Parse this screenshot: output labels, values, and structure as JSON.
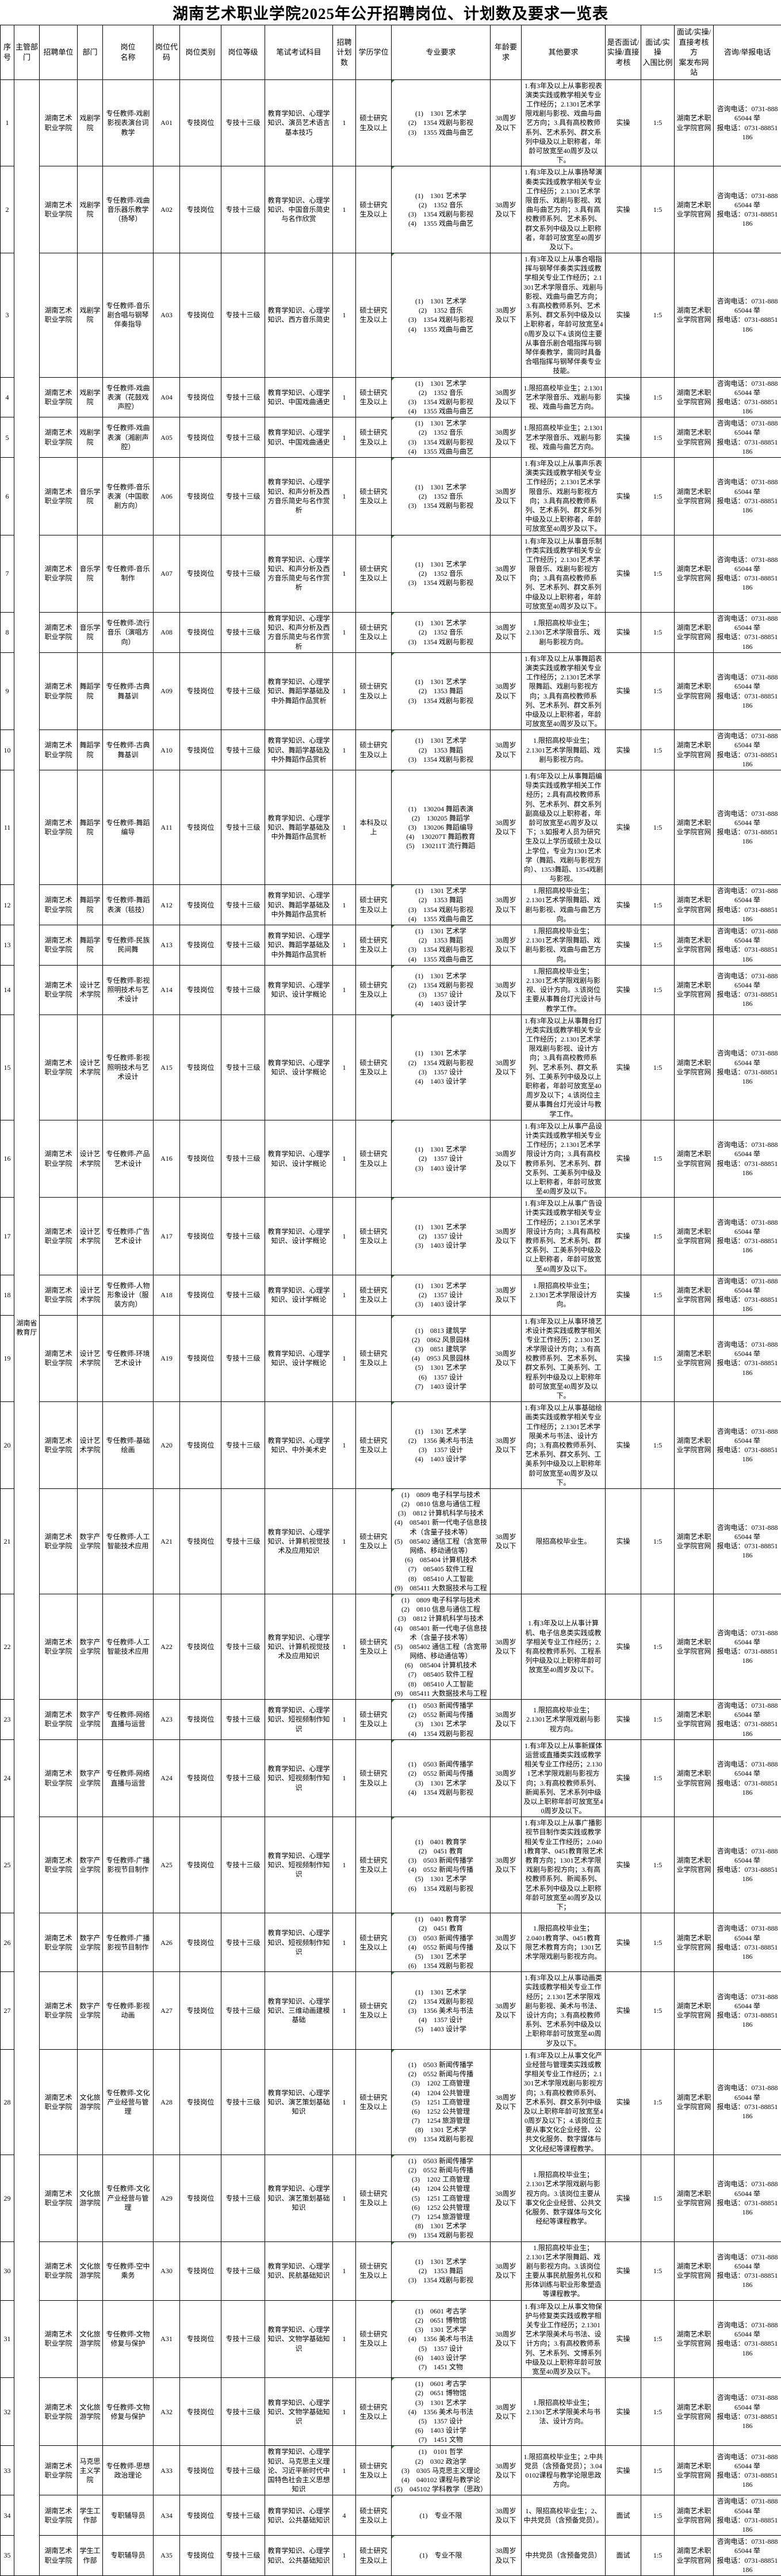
{
  "title": "湖南艺术职业学院2025年公开招聘岗位、计划数及要求一览表",
  "columns": [
    "序号",
    "主管部门",
    "招聘单位",
    "部门",
    "岗位\n名称",
    "岗位代\n码",
    "岗位类别",
    "岗位等级",
    "笔试考试科目",
    "招聘\n计划\n数",
    "学历学位",
    "专业要求",
    "年龄要\n求",
    "其他要求",
    "是否面试/\n实操/直接\n考核",
    "面试/实操\n入围比例",
    "面试/实操/\n直接考核方\n案发布网站",
    "咨询/举报电话"
  ],
  "supervisor": "湖南省教育厅",
  "defaults": {
    "org": "湖南艺术职业学院",
    "category": "专技岗位",
    "grade": "专技十三级",
    "plan": "1",
    "degree": "硕士研究生及以上",
    "age": "38周岁及以下",
    "assess": "实操",
    "ratio": "1:5",
    "site": "湖南艺术职业学院官网",
    "phone": "咨询电话：0731-88865044        举\n报电话：0731-88851186"
  },
  "rows": [
    {
      "no": "1",
      "dept": "戏剧学院",
      "job": "专任教师-戏剧影视表演台词教学",
      "code": "A01",
      "exam": "教育学知识、心理学知识、演员艺术语言基本技巧",
      "majors": [
        "(1)　1301 艺术学",
        "(2)　1354 戏剧与影视",
        "(3)　1355 戏曲与曲艺"
      ],
      "other": "1.有3年及以上从事影视表演类实践或教学相关专业工作经历；2.1301艺术学限戏剧与影视、戏曲与曲艺方向；3.具有高校教师系列、艺术系列、群文系列中级及以上职称者，年龄可放宽至40周岁及以下。"
    },
    {
      "no": "2",
      "dept": "戏剧学院",
      "job": "专任教师-戏曲音乐器乐教学（扬琴）",
      "code": "A02",
      "exam": "教育学知识、心理学知识、中国音乐简史与名作欣赏",
      "majors": [
        "(1)　1301 艺术学",
        "(2)　1352 音乐",
        "(3)　1354 戏剧与影视",
        "(4)　1355 戏曲与曲艺"
      ],
      "other": "1.有3年及以上从事扬琴演奏类实践或教学相关专业工作经历；2.1301艺术学限音乐、戏剧与影视、戏曲与曲艺方向；3.具有高校教师系列、艺术系列、群文系列中级及以上职称者，年龄可放宽至40周岁及以下。"
    },
    {
      "no": "3",
      "dept": "戏剧学院",
      "job": "专任教师-音乐剧合唱与钢琴伴奏指导",
      "code": "A03",
      "exam": "教育学知识、心理学知识、西方音乐简史",
      "majors": [
        "(1)　1301 艺术学",
        "(2)　1352 音乐",
        "(3)　1354 戏剧与影视",
        "(4)　1355 戏曲与曲艺"
      ],
      "other": "1.有3年及以上从事合唱指挥与钢琴伴奏类实践或教学相关专业工作经历；2.1301艺术学限音乐、戏剧与影视、戏曲与曲艺方向；3.有高校教师系列、艺术系列、群文系列中级及以上职称者，年龄可放宽至40周岁及以下4.该岗位主要从事音乐剧合唱指挥与钢琴伴奏教学，需同时具备合唱指挥与钢琴伴奏专业技能。"
    },
    {
      "no": "4",
      "dept": "戏剧学院",
      "job": "专任教师-戏曲表演（花鼓戏声腔）",
      "code": "A04",
      "exam": "教育学知识、心理学知识、中国戏曲通史",
      "majors": [
        "(1)　1301 艺术学",
        "(2)　1352 音乐",
        "(3)　1354 戏剧与影视",
        "(4)　1355 戏曲与曲艺"
      ],
      "other": "1.限招高校毕业生；2.1301艺术学限音乐、戏剧与影视、戏曲与曲艺方向。"
    },
    {
      "no": "5",
      "dept": "戏剧学院",
      "job": "专任教师-戏曲表演（湘剧声腔）",
      "code": "A05",
      "exam": "教育学知识、心理学知识、中国戏曲通史",
      "majors": [
        "(1)　1301 艺术学",
        "(2)　1352 音乐",
        "(3)　1354 戏剧与影视",
        "(4)　1355 戏曲与曲艺"
      ],
      "other": "1.限招高校毕业生；2.1301艺术学限音乐、戏剧与影视、戏曲与曲艺方向。"
    },
    {
      "no": "6",
      "dept": "音乐学院",
      "job": "专任教师-音乐表演（中国歌剧方向）",
      "code": "A06",
      "exam": "教育学知识、心理学知识、和声分析及西方音乐简史与名作赏析",
      "majors": [
        "(1)　1301 艺术学",
        "(2)　1352 音乐",
        "(3)　1354 戏剧与影视"
      ],
      "other": "1.有3年及以上从事声乐表演类实践或教学相关专业工作经历；2.1301艺术学限音乐、戏剧与影视方向；3.具有高校教师系列、艺术系列、群文系列中级及以上职称者，年龄可放宽至40周岁及以下。"
    },
    {
      "no": "7",
      "dept": "音乐学院",
      "job": "专任教师-音乐制作",
      "code": "A07",
      "exam": "教育学知识、心理学知识、和声分析及西方音乐简史与名作赏析",
      "majors": [
        "(1)　1301 艺术学",
        "(2)　1352 音乐",
        "(3)　1354 戏剧与影视"
      ],
      "other": "1.有3年及以上从事音乐制作类实践或教学相关专业工作经历；2.1301艺术学限音乐、戏剧与影视方向；3.具有高校教师系列、艺术系列、群文系列中级及以上职称者，年龄可放宽至40周岁及以下。"
    },
    {
      "no": "8",
      "dept": "音乐学院",
      "job": "专任教师-流行音乐（演唱方向）",
      "code": "A08",
      "exam": "教育学知识、心理学知识、和声分析及西方音乐简史与名作赏析",
      "majors": [
        "(1)　1301 艺术学",
        "(2)　1352 音乐",
        "(3)　1354 戏剧与影视"
      ],
      "other": "1.限招高校毕业生；\n2.1301艺术学限音乐、戏剧与影视方向。"
    },
    {
      "no": "9",
      "dept": "舞蹈学院",
      "job": "专任教师-古典舞基训",
      "code": "A09",
      "exam": "教育学知识、心理学知识、舞蹈学基础及中外舞蹈作品赏析",
      "majors": [
        "(1)　1301 艺术学",
        "(2)　1353 舞蹈",
        "(3)　1354 戏剧与影视"
      ],
      "other": "1.有3年及以上从事舞蹈表演类实践或教学相关专业工作经历；2.1301艺术学限舞蹈、戏剧与影视方向；3.具有高校教师系列、艺术系列、群文系列中级及以上职称者，年龄可放宽至40周岁及以下。"
    },
    {
      "no": "10",
      "dept": "舞蹈学院",
      "job": "专任教师-古典舞基训",
      "code": "A10",
      "exam": "教育学知识、心理学知识、舞蹈学基础及中外舞蹈作品赏析",
      "majors": [
        "(1)　1301 艺术学",
        "(2)　1353 舞蹈",
        "(3)　1354 戏剧与影视"
      ],
      "other": "1.限招高校毕业生；\n2.1301艺术学限舞蹈、戏剧与影视方向。"
    },
    {
      "no": "11",
      "dept": "舞蹈学院",
      "job": "专任教师-舞蹈编导",
      "code": "A11",
      "exam": "教育学知识、心理学知识、舞蹈学基础及中外舞蹈作品赏析",
      "degree": "本科及以上",
      "majors": [
        "(1)　130204 舞蹈表演",
        "(2)　130205 舞蹈学",
        "(3)　130206 舞蹈编导",
        "(4)　130207T 舞蹈教育",
        "(5)　130211T 流行舞蹈"
      ],
      "other": "1.有5年及以上从事舞蹈编导类实践或教学相关工作经历；2.具有高校教师系列、艺术系列、群文系列副高级及以上职称者，年龄可放宽至45周岁及以下；3.如报考人员为研究生及以上学历或硕士及以上学位，专业为1301艺术学（舞蹈、戏剧与影视方向）、1353舞蹈、1354戏剧与影视。"
    },
    {
      "no": "12",
      "dept": "舞蹈学院",
      "job": "专任教师-舞蹈表演（毯技）",
      "code": "A12",
      "exam": "教育学知识、心理学知识、舞蹈学基础及中外舞蹈作品赏析",
      "majors": [
        "(1)　1301 艺术学",
        "(2)　1353 舞蹈",
        "(3)　1354 戏剧与影视",
        "(4)　1355 戏曲与曲艺"
      ],
      "other": "1.限招高校毕业生；\n2.1301艺术学限舞蹈、戏剧与影视、戏曲与曲艺方向。"
    },
    {
      "no": "13",
      "dept": "舞蹈学院",
      "job": "专任教师-民族民间舞",
      "code": "A13",
      "exam": "教育学知识、心理学知识、舞蹈学基础及中外舞蹈作品赏析",
      "majors": [
        "(1)　1301 艺术学",
        "(2)　1353 舞蹈",
        "(3)　1354 戏剧与影视",
        "(4)　1355 戏曲与曲艺"
      ],
      "other": "1.限招高校毕业生；\n2.1301艺术学限舞蹈、戏剧与影视、戏曲与曲艺方向。"
    },
    {
      "no": "14",
      "dept": "设计艺术学院",
      "job": "专任教师-影视照明技术与艺术设计",
      "code": "A14",
      "exam": "教育学知识、心理学知识、设计学概论",
      "majors": [
        "(1)　1301 艺术学",
        "(2)　1354 戏剧与影视",
        "(3)　1357 设计",
        "(4)　1403 设计学"
      ],
      "other": "1.限招高校毕业生；\n2.1301艺术学限戏剧与影视、设计方向。3.该岗位主要从事舞台灯光设计与教学工作。"
    },
    {
      "no": "15",
      "dept": "设计艺术学院",
      "job": "专任教师-影视照明技术与艺术设计",
      "code": "A15",
      "exam": "教育学知识、心理学知识、设计学概论",
      "majors": [
        "(1)　1301 艺术学",
        "(2)　1354 戏剧与影视",
        "(3)　1357 设计",
        "(4)　1403 设计学"
      ],
      "other": "1.有3年及以上从事舞台灯光类实践或教学相关专业工作经历；2.1301艺术学限戏剧与影视、设计方向；3.具有高校教师系列、艺术系列、群文系列、工美系列中级及以上职称者，年龄可放宽至40周岁及以下；4.该岗位主要从事舞台灯光设计与教学工作。"
    },
    {
      "no": "16",
      "dept": "设计艺术学院",
      "job": "专任教师-产品艺术设计",
      "code": "A16",
      "exam": "教育学知识、心理学知识、设计学概论",
      "majors": [
        "(1)　1301 艺术学",
        "(2)　1357 设计",
        "(3)　1403 设计学"
      ],
      "other": "1.有3年及以上从事产品设计类实践或教学相关专业工作经历；2.1301艺术学限设计方向；3.具有高校教师系列、艺术系列、群文系列、工美系列中级及以上职称者，年龄可放宽至40周岁及以下。"
    },
    {
      "no": "17",
      "dept": "设计艺术学院",
      "job": "专任教师-广告艺术设计",
      "code": "A17",
      "exam": "教育学知识、心理学知识、设计学概论",
      "majors": [
        "(1)　1301 艺术学",
        "(2)　1357 设计",
        "(3)　1403 设计学"
      ],
      "other": "1.有3年及以上从事广告设计类实践或教学相关专业工作经历；2.1301艺术学限设计方向；3.具有高校教师系列、艺术系列、群文系列、工美系列中级及以上职称者，年龄可放宽至40周岁及以下。"
    },
    {
      "no": "18",
      "dept": "设计艺术学院",
      "job": "专任教师-人物形象设计（服装方向）",
      "code": "A18",
      "exam": "教育学知识、心理学知识、设计学概论",
      "majors": [
        "(1)　1301 艺术学",
        "(2)　1357 设计",
        "(3)　1403 设计学"
      ],
      "other": "1.限招高校毕业生；\n2.1301艺术学限设计方向。"
    },
    {
      "no": "19",
      "dept": "设计艺术学院",
      "job": "专任教师-环境艺术设计",
      "code": "A19",
      "exam": "教育学知识、心理学知识、设计学概论",
      "majors": [
        "(1)　0813 建筑学",
        "(2)　0862 风景园林",
        "(3)　0851 建筑学",
        "(4)　0953 风景园林",
        "(5)　1301 艺术学",
        "(6)　1357 设计",
        "(7)　1403 设计学"
      ],
      "other": "1.有3年及以上从事环境艺术设计类实践或教学相关专业工作经历；2.1301艺术学限设计方向；3.有高校教师系列、艺术系列、群文系列、工美系列、工程系列中级及以上职称年龄可放宽至40周岁及以下。"
    },
    {
      "no": "20",
      "dept": "设计艺术学院",
      "job": "专任教师-基础绘画",
      "code": "A20",
      "exam": "教育学知识、心理学知识、中外美术史",
      "majors": [
        "(1)　1301 艺术学",
        "(2)　1356 美术与书法",
        "(3)　1357 设计",
        "(4)　1403 设计学"
      ],
      "other": "1.有3年及以上从事基础绘画类实践或教学相关专业工作经历；2.1301艺术学限美术与书法、设计方向；3.有高校教师系列、艺术系列、群文系列、工美系列中级及以上职称年龄可放宽至40周岁及以下。"
    },
    {
      "no": "21",
      "dept": "数字产业学院",
      "job": "专任教师-人工智能技术应用",
      "code": "A21",
      "exam": "教育学知识、心理学知识、计算机视觉技术及应用知识",
      "majors": [
        "(1)　0809 电子科学与技术",
        "(2)　0810 信息与通信工程",
        "(3)　0812 计算机科学与技术",
        "(4)　085401 新一代电子信息技术（含量子技术等）",
        "(5)　085402 通信工程（含宽带网络、移动通信等）",
        "(6)　085404 计算机技术",
        "(7)　085405 软件工程",
        "(8)　085410 人工智能",
        "(9)　085411 大数据技术与工程"
      ],
      "other": "限招高校毕业生。"
    },
    {
      "no": "22",
      "dept": "数字产业学院",
      "job": "专任教师-人工智能技术应用",
      "code": "A22",
      "exam": "教育学知识、心理学知识、计算机视觉技术及应用知识",
      "majors": [
        "(1)　0809 电子科学与技术",
        "(2)　0810 信息与通信工程",
        "(3)　0812 计算机科学与技术",
        "(4)　085401 新一代电子信息技术（含量子技术等）",
        "(5)　085402 通信工程（含宽带网络、移动通信等）",
        "(6)　085404 计算机技术",
        "(7)　085405 软件工程",
        "(8)　085410 人工智能",
        "(9)　085411 大数据技术与工程"
      ],
      "other": "1.有3年及以上从事计算机、电子信息类实践或教学相关专业工作经历；2.有高校教师系列、工程系列中级及以上职称年龄可放宽至40周岁及以下。"
    },
    {
      "no": "23",
      "dept": "数字产业学院",
      "job": "专任教师-网络直播与运营",
      "code": "A23",
      "exam": "教育学知识、心理学知识、短视频制作知识",
      "majors": [
        "(1)　0503 新闻传播学",
        "(2)　0552 新闻与传播",
        "(3)　1301 艺术学",
        "(4)　1354 戏剧与影视"
      ],
      "other": "1.限招高校毕业生；\n2.1301艺术学限戏剧与影视方向。"
    },
    {
      "no": "24",
      "dept": "数字产业学院",
      "job": "专任教师-网络直播与运营",
      "code": "A24",
      "exam": "教育学知识、心理学知识、短视频制作知识",
      "majors": [
        "(1)　0503 新闻传播学",
        "(2)　0552 新闻与传播",
        "(3)　1301 艺术学",
        "(4)　1354 戏剧与影视"
      ],
      "other": "1.有3年及以上从事新媒体运营或直播类实践或教学相关专业工作经历；2.1301艺术学限戏剧与影视方向；3.有高校教师系列、新闻系列、艺术系列中级及以上职称年龄可放宽至40周岁及以下。"
    },
    {
      "no": "25",
      "dept": "数字产业学院",
      "job": "专任教师-广播影视节目制作",
      "code": "A25",
      "exam": "教育学知识、心理学知识、短视频制作知识",
      "majors": [
        "(1)　0401 教育学",
        "(2)　0451 教育",
        "(3)　0503 新闻传播学",
        "(4)　0552 新闻与传播",
        "(5)　1301 艺术学",
        "(6)　1354 戏剧与影视"
      ],
      "other": "1.有3年及以上从事广播影视节目制作类实践或教学相关专业工作经历；2.0401教育学、0451教育限艺术教育方向；1301艺术学限戏剧与影视方向；3.有高校教师系列、新闻系列、艺术系列中级及以上职称年龄可放宽至40周岁及以下；"
    },
    {
      "no": "26",
      "dept": "数字产业学院",
      "job": "专任教师-广播影视节目制作",
      "code": "A26",
      "exam": "教育学知识、心理学知识、短视频制作知识",
      "majors": [
        "(1)　0401 教育学",
        "(2)　0451 教育",
        "(3)　0503 新闻传播学",
        "(4)　0552 新闻与传播",
        "(5)　1301 艺术学",
        "(6)　1354 戏剧与影视"
      ],
      "other": "1.限招高校毕业生；\n2.0401教育学、0451教育限艺术教育方向；1301艺术学限戏剧与影视方向。"
    },
    {
      "no": "27",
      "dept": "数字产业学院",
      "job": "专任教师-影视动画",
      "code": "A27",
      "exam": "教育学知识、心理学知识、三维动画建模基础",
      "majors": [
        "(1)　1301 艺术学",
        "(2)　1354 戏剧与影视",
        "(3)　1356 美术与书法",
        "(4)　1357 设计",
        "(5)　1403 设计学"
      ],
      "other": "1.有3年及以上从事动画类实践或教学相关专业工作经历；2.1301艺术学限戏剧与影视、美术与书法、设计方向；3.有高校教师系列、艺术系列中级及以上职称年龄可放宽至40周岁及以下。"
    },
    {
      "no": "28",
      "dept": "文化旅游学院",
      "job": "专任教师-文化产业经营与管理",
      "code": "A28",
      "exam": "教育学知识、心理学知识、演艺策划基础知识",
      "majors": [
        "(1)　0503 新闻传播学",
        "(2)　0552 新闻与传播",
        "(3)　1202 工商管理",
        "(4)　1204 公共管理",
        "(5)　1251 工商管理",
        "(6)　1252 公共管理",
        "(7)　1254 旅游管理",
        "(8)　1301 艺术学",
        "(9)　1354 戏剧与影视"
      ],
      "other": "1.有3年及以上从事文化产业经营与管理类实践或教学相关专业工作经历；2.1301艺术学限戏剧与影视方向；3.有高校教师系列、艺术系列、群文系列中级及以上职称年龄可放宽至40周岁及以下；4.该岗位主要从事文化企业经营、公共文化服务、数字媒体与文化经纪等课程教学。"
    },
    {
      "no": "29",
      "dept": "文化旅游学院",
      "job": "专任教师-文化产业经营与管理",
      "code": "A29",
      "exam": "教育学知识、心理学知识、演艺策划基础知识",
      "majors": [
        "(1)　0503 新闻传播学",
        "(2)　0552 新闻与传播",
        "(3)　1202 工商管理",
        "(4)　1204 公共管理",
        "(5)　1251 工商管理",
        "(6)　1252 公共管理",
        "(7)　1254 旅游管理",
        "(8)　1301 艺术学",
        "(9)　1354 戏剧与影视"
      ],
      "other": "1.限招高校毕业生；\n2.1301艺术学限戏剧与影视方向。3.该岗位主要从事文化企业经营、公共文化服务、数字媒体与文化经纪等课程教学。"
    },
    {
      "no": "30",
      "dept": "文化旅游学院",
      "job": "专任教师-空中乘务",
      "code": "A30",
      "exam": "教育学知识、心理学知识、民航基础知识",
      "majors": [
        "(1)　1301 艺术学",
        "(2)　1353 舞蹈",
        "(3)　1354 戏剧与影视"
      ],
      "other": "1.限招高校毕业生；\n2.1301艺术学限舞蹈、戏剧与影视方向。3.该岗位主要从事民航服务礼仪和形体训练与职业形象塑造等课程教学。"
    },
    {
      "no": "31",
      "dept": "文化旅游学院",
      "job": "专任教师-文物修复与保护",
      "code": "A31",
      "exam": "教育学知识、心理学知识、文物学基础知识",
      "majors": [
        "(1)　0601 考古学",
        "(2)　0651 博物馆",
        "(3)　1301 艺术学",
        "(4)　1356 美术与书法",
        "(5)　1357 设计",
        "(6)　1403 设计学",
        "(7)　1451 文物"
      ],
      "other": "1.有3年及以上从事文物保护与修复类实践或教学相关专业工作经历；2.1301艺术学限美术与书法、设计方向；3.有高校教师系列、艺术系列、文博系列中级及以上职称年龄可放宽至40周岁及以下。"
    },
    {
      "no": "32",
      "dept": "文化旅游学院",
      "job": "专任教师-文物修复与保护",
      "code": "A32",
      "exam": "教育学知识、心理学知识、文物学基础知识",
      "majors": [
        "(1)　0601 考古学",
        "(2)　0651 博物馆",
        "(3)　1301 艺术学",
        "(4)　1356 美术与书法",
        "(5)　1357 设计",
        "(6)　1403 设计学",
        "(7)　1451 文物"
      ],
      "other": "1.限招高校毕业生；\n2.1301艺术学限美术与书法、设计方向。"
    },
    {
      "no": "33",
      "dept": "马克思主义学院",
      "job": "专任教师-思想政治理论",
      "code": "A33",
      "exam": "教育学知识、心理学知识、马克思主义理论、习近平新时代中国特色社会主义思想知识",
      "majors": [
        "(1)　0101 哲学",
        "(2)　0302 政治学",
        "(3)　0305 马克思主义理论",
        "(4)　040102 课程与教学论",
        "(5)　045102 学科教学（思政）"
      ],
      "other": "1.限招高校毕业生；2.中共党员（含预备党员）；3.040102课程与教学论限思政方向。"
    },
    {
      "no": "34",
      "dept": "学生工作部",
      "job": "专职辅导员",
      "code": "A34",
      "exam": "教育学知识、心理学知识、公共基础知识",
      "plan": "4",
      "majors": [
        "(1)　专业不限"
      ],
      "other": "1、限招高校毕业生；2、中共党员（含预备党员）。",
      "assess": "面试"
    },
    {
      "no": "35",
      "dept": "学生工作部",
      "job": "专职辅导员",
      "code": "A35",
      "exam": "教育学知识、心理学知识、公共基础知识",
      "majors": [
        "(1)　专业不限"
      ],
      "other": "中共党员（含预备党员）",
      "assess": "面试"
    }
  ]
}
